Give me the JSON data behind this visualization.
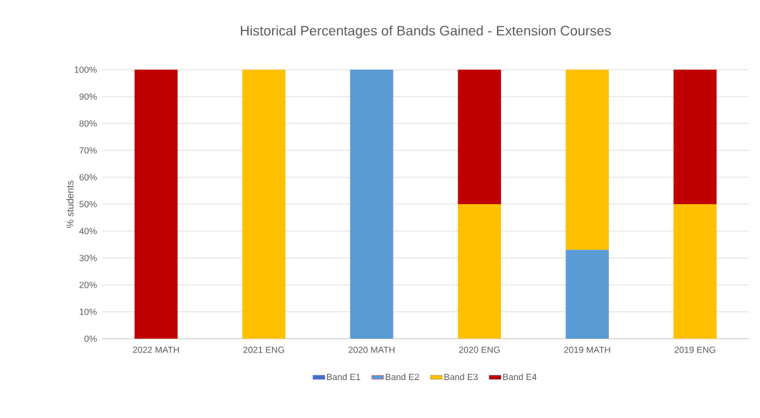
{
  "chart_data": {
    "type": "bar",
    "stacked": true,
    "title": "Historical Percentages of Bands Gained - Extension Courses",
    "ylabel": "% students",
    "categories": [
      "2022 MATH",
      "2021 ENG",
      "2020 MATH",
      "2020 ENG",
      "2019 MATH",
      "2019 ENG"
    ],
    "series": [
      {
        "name": "Band E1",
        "color": "#4472c4",
        "values": [
          0,
          0,
          0,
          0,
          0,
          0
        ]
      },
      {
        "name": "Band E2",
        "color": "#5b9bd5",
        "values": [
          0,
          0,
          100,
          0,
          33,
          0
        ]
      },
      {
        "name": "Band E3",
        "color": "#ffc000",
        "values": [
          0,
          100,
          0,
          50,
          67,
          50
        ]
      },
      {
        "name": "Band E4",
        "color": "#c00000",
        "values": [
          100,
          0,
          0,
          50,
          0,
          50
        ]
      }
    ],
    "ylim": [
      0,
      100
    ],
    "yticks": [
      {
        "value": 0,
        "label": "0%"
      },
      {
        "value": 10,
        "label": "10%"
      },
      {
        "value": 20,
        "label": "20%"
      },
      {
        "value": 30,
        "label": "30%"
      },
      {
        "value": 40,
        "label": "40%"
      },
      {
        "value": 50,
        "label": "50%"
      },
      {
        "value": 60,
        "label": "60%"
      },
      {
        "value": 70,
        "label": "70%"
      },
      {
        "value": 80,
        "label": "80%"
      },
      {
        "value": 90,
        "label": "90%"
      },
      {
        "value": 100,
        "label": "100%"
      }
    ],
    "grid": "y",
    "legend": "bottom"
  }
}
